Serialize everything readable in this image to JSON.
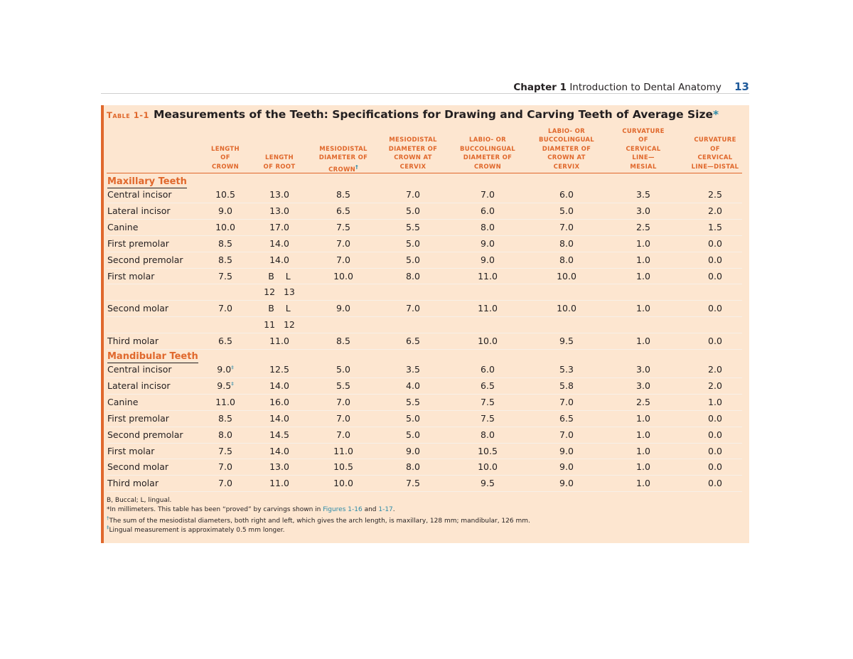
{
  "running_head": {
    "chapter": "Chapter 1",
    "title": "Introduction to Dental Anatomy",
    "page": "13"
  },
  "table": {
    "label": "Table 1-1",
    "title": "Measurements of the Teeth: Specifications for Drawing and Carving Teeth of Average Size",
    "title_mark": "*",
    "columns": [
      "Length of Crown",
      "Length of Root",
      "Mesiodistal Diameter of Crown†",
      "Mesiodistal Diameter of Crown at Cervix",
      "Labio- or Buccolingual Diameter of Crown",
      "Labio- or Buccolingual Diameter of Crown at Cervix",
      "Curvature of Cervical Line— Mesial",
      "Curvature of Cervical Line—Distal"
    ],
    "column_lines": [
      [
        "Length",
        "of",
        "Crown"
      ],
      [
        "Length",
        "of Root"
      ],
      [
        "Mesiodistal",
        "Diameter of",
        "Crown"
      ],
      [
        "Mesiodistal",
        "Diameter of",
        "Crown at",
        "Cervix"
      ],
      [
        "Labio- or",
        "Buccolingual",
        "Diameter of",
        "Crown"
      ],
      [
        "Labio- or",
        "Buccolingual",
        "Diameter of",
        "Crown at",
        "Cervix"
      ],
      [
        "Curvature",
        "of",
        "Cervical",
        "Line—",
        "Mesial"
      ],
      [
        "Curvature",
        "of",
        "Cervical",
        "Line—Distal"
      ]
    ],
    "column_marks": [
      "",
      "",
      "†",
      "",
      "",
      "",
      "",
      ""
    ],
    "sections": [
      {
        "name": "Maxillary Teeth",
        "rows": [
          {
            "tooth": "Central incisor",
            "values": [
              "10.5",
              "13.0",
              "8.5",
              "7.0",
              "7.0",
              "6.0",
              "3.5",
              "2.5"
            ]
          },
          {
            "tooth": "Lateral incisor",
            "values": [
              "9.0",
              "13.0",
              "6.5",
              "5.0",
              "6.0",
              "5.0",
              "3.0",
              "2.0"
            ]
          },
          {
            "tooth": "Canine",
            "values": [
              "10.0",
              "17.0",
              "7.5",
              "5.5",
              "8.0",
              "7.0",
              "2.5",
              "1.5"
            ]
          },
          {
            "tooth": "First premolar",
            "values": [
              "8.5",
              "14.0",
              "7.0",
              "5.0",
              "9.0",
              "8.0",
              "1.0",
              "0.0"
            ]
          },
          {
            "tooth": "Second premolar",
            "values": [
              "8.5",
              "14.0",
              "7.0",
              "5.0",
              "9.0",
              "8.0",
              "1.0",
              "0.0"
            ]
          },
          {
            "tooth": "First molar",
            "values": [
              "7.5",
              "B    L",
              "10.0",
              "8.0",
              "11.0",
              "10.0",
              "1.0",
              "0.0"
            ],
            "sub": "12   13"
          },
          {
            "tooth": "Second molar",
            "values": [
              "7.0",
              "B    L",
              "9.0",
              "7.0",
              "11.0",
              "10.0",
              "1.0",
              "0.0"
            ],
            "sub": "11   12"
          },
          {
            "tooth": "Third molar",
            "values": [
              "6.5",
              "11.0",
              "8.5",
              "6.5",
              "10.0",
              "9.5",
              "1.0",
              "0.0"
            ]
          }
        ]
      },
      {
        "name": "Mandibular Teeth",
        "rows": [
          {
            "tooth": "Central incisor",
            "values": [
              "9.0",
              "12.5",
              "5.0",
              "3.5",
              "6.0",
              "5.3",
              "3.0",
              "2.0"
            ],
            "mark": "‡"
          },
          {
            "tooth": "Lateral incisor",
            "values": [
              "9.5",
              "14.0",
              "5.5",
              "4.0",
              "6.5",
              "5.8",
              "3.0",
              "2.0"
            ],
            "mark": "‡"
          },
          {
            "tooth": "Canine",
            "values": [
              "11.0",
              "16.0",
              "7.0",
              "5.5",
              "7.5",
              "7.0",
              "2.5",
              "1.0"
            ]
          },
          {
            "tooth": "First premolar",
            "values": [
              "8.5",
              "14.0",
              "7.0",
              "5.0",
              "7.5",
              "6.5",
              "1.0",
              "0.0"
            ]
          },
          {
            "tooth": "Second premolar",
            "values": [
              "8.0",
              "14.5",
              "7.0",
              "5.0",
              "8.0",
              "7.0",
              "1.0",
              "0.0"
            ]
          },
          {
            "tooth": "First molar",
            "values": [
              "7.5",
              "14.0",
              "11.0",
              "9.0",
              "10.5",
              "9.0",
              "1.0",
              "0.0"
            ]
          },
          {
            "tooth": "Second molar",
            "values": [
              "7.0",
              "13.0",
              "10.5",
              "8.0",
              "10.0",
              "9.0",
              "1.0",
              "0.0"
            ]
          },
          {
            "tooth": "Third molar",
            "values": [
              "7.0",
              "11.0",
              "10.0",
              "7.5",
              "9.5",
              "9.0",
              "1.0",
              "0.0"
            ]
          }
        ]
      }
    ],
    "footnotes": {
      "abbrev": "B, Buccal; L, lingual.",
      "star_a": "*In millimeters. This table has been “proved” by carvings shown in ",
      "fig1": "Figures 1-16",
      "and": " and ",
      "fig2": "1-17",
      "star_b": ".",
      "dagger": "The sum of the mesiodistal diameters, both right and left, which gives the arch length, is maxillary, 128 mm; mandibular, 126 mm.",
      "dagger_mark": "†",
      "ddagger": "Lingual measurement is approximately 0.5 mm longer.",
      "ddagger_mark": "‡"
    }
  }
}
